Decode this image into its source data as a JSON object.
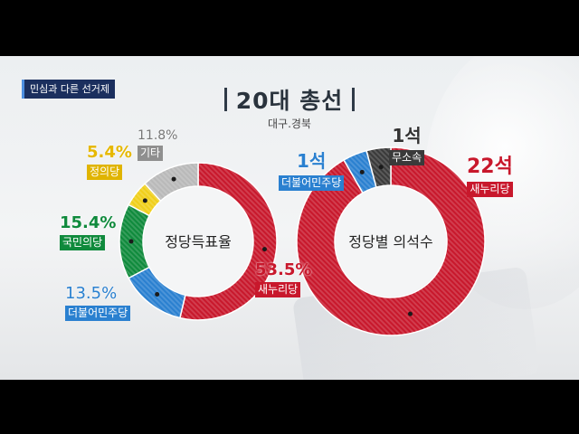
{
  "tag": "민심과 다른 선거제",
  "title": "20대 총선",
  "subtitle": "대구.경북",
  "colors": {
    "saenuri": "#c8182c",
    "deobureo": "#2a80d0",
    "gukmin": "#0f8a3c",
    "jeongui": "#f0cf1a",
    "gita": "#b9b9b9",
    "musosok": "#3a3a3a"
  },
  "chart_data": [
    {
      "type": "pie",
      "center_label": "정당득표율",
      "slices": [
        {
          "label": "새누리당",
          "value": 53.5,
          "display": "53.5%"
        },
        {
          "label": "더불어민주당",
          "value": 13.5,
          "display": "13.5%"
        },
        {
          "label": "국민의당",
          "value": 15.4,
          "display": "15.4%"
        },
        {
          "label": "정의당",
          "value": 5.4,
          "display": "5.4%"
        },
        {
          "label": "기타",
          "value": 11.8,
          "display": "11.8%"
        }
      ]
    },
    {
      "type": "pie",
      "center_label": "정당별 의석수",
      "slices": [
        {
          "label": "새누리당",
          "value": 22,
          "display": "22석"
        },
        {
          "label": "더불어민주당",
          "value": 1,
          "display": "1석"
        },
        {
          "label": "무소속",
          "value": 1,
          "display": "1석"
        }
      ]
    }
  ]
}
